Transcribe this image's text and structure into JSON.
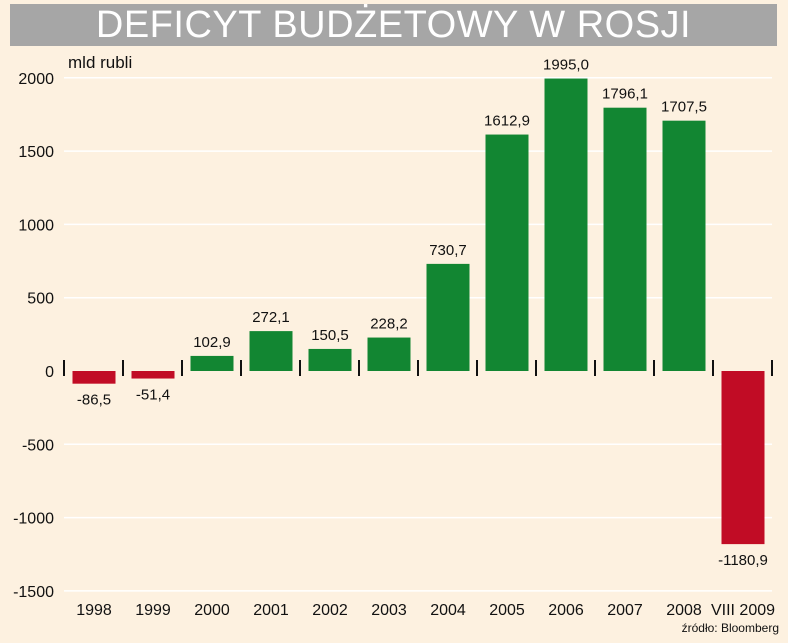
{
  "title": "DEFICYT BUDŻETOWY W ROSJI",
  "unit": "mld rubli",
  "source": "źródło: Bloomberg",
  "colors": {
    "background": "#fdf1e0",
    "title_bar": "#a6a6a6",
    "positive": "#128632",
    "negative": "#c10c25",
    "grid": "#ffffff"
  },
  "chart_data": {
    "type": "bar",
    "title": "DEFICYT BUDŻETOWY W ROSJI",
    "ylabel": "mld rubli",
    "categories": [
      "1998",
      "1999",
      "2000",
      "2001",
      "2002",
      "2003",
      "2004",
      "2005",
      "2006",
      "2007",
      "2008",
      "VIII 2009"
    ],
    "values": [
      -86.5,
      -51.4,
      102.9,
      272.1,
      150.5,
      228.2,
      730.7,
      1612.9,
      1995.0,
      1796.1,
      1707.5,
      -1180.9
    ],
    "value_labels": [
      "-86,5",
      "-51,4",
      "102,9",
      "272,1",
      "150,5",
      "228,2",
      "730,7",
      "1612,9",
      "1995,0",
      "1796,1",
      "1707,5",
      "-1180,9"
    ],
    "yticks": [
      2000,
      1500,
      1000,
      500,
      0,
      -500,
      -1000,
      -1500
    ],
    "ytick_labels": [
      "2000",
      "1500",
      "1000",
      "500",
      "0",
      "-500",
      "-1000",
      "-1500"
    ],
    "ylim": [
      -1500,
      2000
    ],
    "grid": true,
    "legend": "none"
  }
}
